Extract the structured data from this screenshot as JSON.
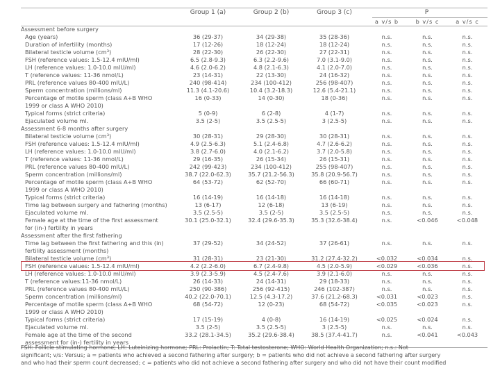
{
  "header": {
    "group1": "Group 1 (a)",
    "group2": "Group 2 (b)",
    "group3": "Group 3 (c)",
    "p": "P",
    "p_avsb": "a v/s b",
    "p_bvsc": "b v/s c",
    "p_avsc": "a v/s c"
  },
  "rows": [
    {
      "type": "section",
      "label": "Assessment before surgery"
    },
    {
      "label": "Age (years)",
      "g1": "36 (29-37)",
      "g2": "34 (29-38)",
      "g3": "35 (28-36)",
      "p1": "n.s.",
      "p2": "n.s.",
      "p3": "n.s."
    },
    {
      "label": "Duration of infertility (months)",
      "g1": "17 (12-26)",
      "g2": "18 (12-24)",
      "g3": "18 (12-24)",
      "p1": "n.s.",
      "p2": "n.s.",
      "p3": "n.s."
    },
    {
      "label": "Bilateral testicle volume (cm³)",
      "g1": "28 (22-30)",
      "g2": "26 (22-30)",
      "g3": "27 (22-31)",
      "p1": "n.s.",
      "p2": "n.s.",
      "p3": "n.s."
    },
    {
      "label": "FSH (reference values: 1.5-12.4 mIU/ml)",
      "g1": "6.5 (2.8-9.3)",
      "g2": "6.3 (2.2-9.6)",
      "g3": "7.0 (3.1-9.0)",
      "p1": "n.s.",
      "p2": "n.s.",
      "p3": "n.s."
    },
    {
      "label": "LH (reference values: 1.0-10.0 mIU/ml)",
      "g1": "4.6 (2.0-6.2)",
      "g2": "4.8 (2.1-6.3)",
      "g3": "4.1 (2.0-7.0)",
      "p1": "n.s.",
      "p2": "n.s.",
      "p3": "n.s."
    },
    {
      "label": "T (reference values: 11-36 nmol/L)",
      "g1": "23 (14-31)",
      "g2": "22 (13-30)",
      "g3": "24 (16-32)",
      "p1": "n.s.",
      "p2": "n.s.",
      "p3": "n.s."
    },
    {
      "label": "PRL (reference values 80-400 mIU/L)",
      "g1": "240 (98-414)",
      "g2": "234 (100-412)",
      "g3": "256 (98-407)",
      "p1": "n.s.",
      "p2": "n.s.",
      "p3": "n.s."
    },
    {
      "label": "Sperm concentration (millions/ml)",
      "g1": "11.3 (4.1-20.6)",
      "g2": "10.4 (3.2-18.3)",
      "g3": "12.6 (5.4-21.1)",
      "p1": "n.s.",
      "p2": "n.s.",
      "p3": "n.s."
    },
    {
      "label": "Percentage of motile sperm (class A+B WHO",
      "g1": "16 (0-33)",
      "g2": "14 (0-30)",
      "g3": "18 (0-36)",
      "p1": "n.s.",
      "p2": "n.s.",
      "p3": "n.s."
    },
    {
      "type": "cont",
      "label": "1999 or class A WHO 2010)"
    },
    {
      "label": "Typical forms (strict criteria)",
      "g1": "5 (0-9)",
      "g2": "6 (2-8)",
      "g3": "4 (1-7)",
      "p1": "n.s.",
      "p2": "n.s.",
      "p3": "n.s."
    },
    {
      "label": "Ejaculated volume ml.",
      "g1": "3.5 (2-5)",
      "g2": "3.5 (2.5-5)",
      "g3": "3 (2.5-5)",
      "p1": "n.s.",
      "p2": "n.s.",
      "p3": "n.s."
    },
    {
      "type": "section",
      "label": "Assessment 6-8 months after surgery"
    },
    {
      "label": "Bilateral testicle volume (cm³)",
      "g1": "30 (28-31)",
      "g2": "29 (28-30)",
      "g3": "30 (28-31)",
      "p1": "n.s.",
      "p2": "n.s.",
      "p3": "n.s."
    },
    {
      "label": "FSH (reference values: 1.5-12.4 mIU/ml)",
      "g1": "4.9 (2.5-6.3)",
      "g2": "5.1 (2.4-6.8)",
      "g3": "4.7 (2.6-6.2)",
      "p1": "n.s.",
      "p2": "n.s.",
      "p3": "n.s."
    },
    {
      "label": "LH (reference values: 1.0-10.0 mIU/ml)",
      "g1": "3.8 (2.7-6.0)",
      "g2": "4.0 (2.1-6.2)",
      "g3": "3.7 (2.0-5.8)",
      "p1": "n.s.",
      "p2": "n.s.",
      "p3": "n.s."
    },
    {
      "label": "T (reference values: 11-36 nmol/L)",
      "g1": "29 (16-35)",
      "g2": "26 (15-34)",
      "g3": "26 (15-31)",
      "p1": "n.s.",
      "p2": "n.s.",
      "p3": "n.s."
    },
    {
      "label": "PRL (reference values 80-400 mIU/L)",
      "g1": "242 (99-423)",
      "g2": "234 (100-412)",
      "g3": "255 (98-407)",
      "p1": "n.s.",
      "p2": "n.s.",
      "p3": "n.s."
    },
    {
      "label": "Sperm concentration (millions/ml)",
      "g1": "38.7 (22.0-62.3)",
      "g2": "35.7 (21.2-56.3)",
      "g3": "35.8 (20.9-56.7)",
      "p1": "n.s.",
      "p2": "n.s.",
      "p3": "n.s."
    },
    {
      "label": "Percentage of motile sperm (class A+B WHO",
      "g1": "64 (53-72)",
      "g2": "62 (52-70)",
      "g3": "66 (60-71)",
      "p1": "n.s.",
      "p2": "n.s.",
      "p3": "n.s."
    },
    {
      "type": "cont",
      "label": "1999 or class A WHO 2010)"
    },
    {
      "label": "Typical forms (strict criteria)",
      "g1": "16 (14-19)",
      "g2": "16 (14-18)",
      "g3": "16 (14-18)",
      "p1": "n.s.",
      "p2": "n.s.",
      "p3": "n.s."
    },
    {
      "label": "Time lag between surgery and fathering (months)",
      "g1": "13 (6-17)",
      "g2": "12 (6-18)",
      "g3": "13 (6-19)",
      "p1": "n.s.",
      "p2": "n.s.",
      "p3": "n.s."
    },
    {
      "label": "Ejaculated volume ml.",
      "g1": "3.5 (2.5-5)",
      "g2": "3.5 (2-5)",
      "g3": "3.5 (2.5-5)",
      "p1": "n.s.",
      "p2": "n.s.",
      "p3": "n.s."
    },
    {
      "label": "Female age at the time of the first assessment",
      "g1": "30.1 (25.0-32.1)",
      "g2": "32.4 (29.6-35.3)",
      "g3": "35.3 (32.6-38.4)",
      "p1": "n.s.",
      "p2": "<0.046",
      "p3": "<0.048"
    },
    {
      "type": "cont",
      "label": "for (in-) fertility in years"
    },
    {
      "type": "section",
      "label": "Assessment after the first fathering"
    },
    {
      "label": "Time lag between the first fathering and this (in)",
      "g1": "37 (29-52)",
      "g2": "34 (24-52)",
      "g3": "37 (26-61)",
      "p1": "n.s.",
      "p2": "n.s.",
      "p3": "n.s."
    },
    {
      "type": "cont",
      "label": "fertility assessment (months)"
    },
    {
      "label": "Bilateral testicle volume (cm³)",
      "g1": "31 (28-31)",
      "g2": "23 (21-30)",
      "g3": "31.2 (27.4-32.2)",
      "p1": "<0.032",
      "p2": "<0.034",
      "p3": "n.s."
    },
    {
      "label": "FSH (reference values: 1.5-12.4 mIU/ml)",
      "g1": "4.2 (2.2-6.0)",
      "g2": "6.7 (2.4-9.8)",
      "g3": "4.5 (2.0-5.9)",
      "p1": "<0.029",
      "p2": "<0.036",
      "p3": "n.s.",
      "highlight": true
    },
    {
      "label": "LH (reference values: 1.0-10.0 mIU/ml)",
      "g1": "3.9 (2.3-5.9)",
      "g2": "4.5 (2.4-7.6)",
      "g3": "3.9 (2.1-6.0)",
      "p1": "n.s.",
      "p2": "n.s.",
      "p3": "n.s."
    },
    {
      "label": "T (reference values:11-36 nmol/L)",
      "g1": "26 (14-33)",
      "g2": "24 (14-31)",
      "g3": "29 (18-33)",
      "p1": "n.s.",
      "p2": "n.s.",
      "p3": "n.s."
    },
    {
      "label": "PRL (reference values 80-400 mIU/L)",
      "g1": "250 (90-386)",
      "g2": "256 (92-415)",
      "g3": "246 (102-387)",
      "p1": "n.s.",
      "p2": "n.s.",
      "p3": "n.s."
    },
    {
      "label": "Sperm concentration (millions/ml)",
      "g1": "40.2 (22.0-70.1)",
      "g2": "12.5 (4.3-17.2)",
      "g3": "37.6 (21.2-68.3)",
      "p1": "<0.031",
      "p2": "<0.023",
      "p3": "n.s."
    },
    {
      "label": "Percentage of motile sperm (class A+B WHO",
      "g1": "68 (54-72)",
      "g2": "12 (0-23)",
      "g3": "68 (54-72)",
      "p1": "<0.035",
      "p2": "<0.023",
      "p3": "n.s."
    },
    {
      "type": "cont",
      "label": "1999 or class A WHO 2010)"
    },
    {
      "label": "Typical forms (strict criteria)",
      "g1": "17 (15-19)",
      "g2": "4 (0-8)",
      "g3": "16 (14-19)",
      "p1": "<0.025",
      "p2": "<0.024",
      "p3": "n.s."
    },
    {
      "label": "Ejaculated volume ml.",
      "g1": "3.5 (2-5)",
      "g2": "3.5 (2.5-5)",
      "g3": "3 (2.5-5)",
      "p1": "n.s.",
      "p2": "n.s.",
      "p3": "n.s."
    },
    {
      "label": "Female age at the time of the second",
      "g1": "33.2 (28.1-34.5)",
      "g2": "35.2 (29.6-38.4)",
      "g3": "38.5 (37.4-41.7)",
      "p1": "n.s.",
      "p2": "<0.041",
      "p3": "<0.043"
    },
    {
      "type": "cont",
      "label": "assessment for (in-) fertility in years"
    }
  ],
  "footnote": {
    "line1": "FSH: Follicle stimulating hormone; LH: Luteinizing hormone; PRL: Prolactin; T: Total testosterone; WHO: World Health Organization; n.s.: Not",
    "line2": "significant; v/s: Versus; a = patients who achieved a second fathering after surgery; b = patients who did not achieve a second fathering after surgery",
    "line3": "and who had their sperm count decreased; c = patients who did not achieve a second fathering after surgery and who did not have their count modified"
  },
  "colors": {
    "highlight": "#c0424a",
    "text": "#555555",
    "rule": "#aaaaaa"
  }
}
